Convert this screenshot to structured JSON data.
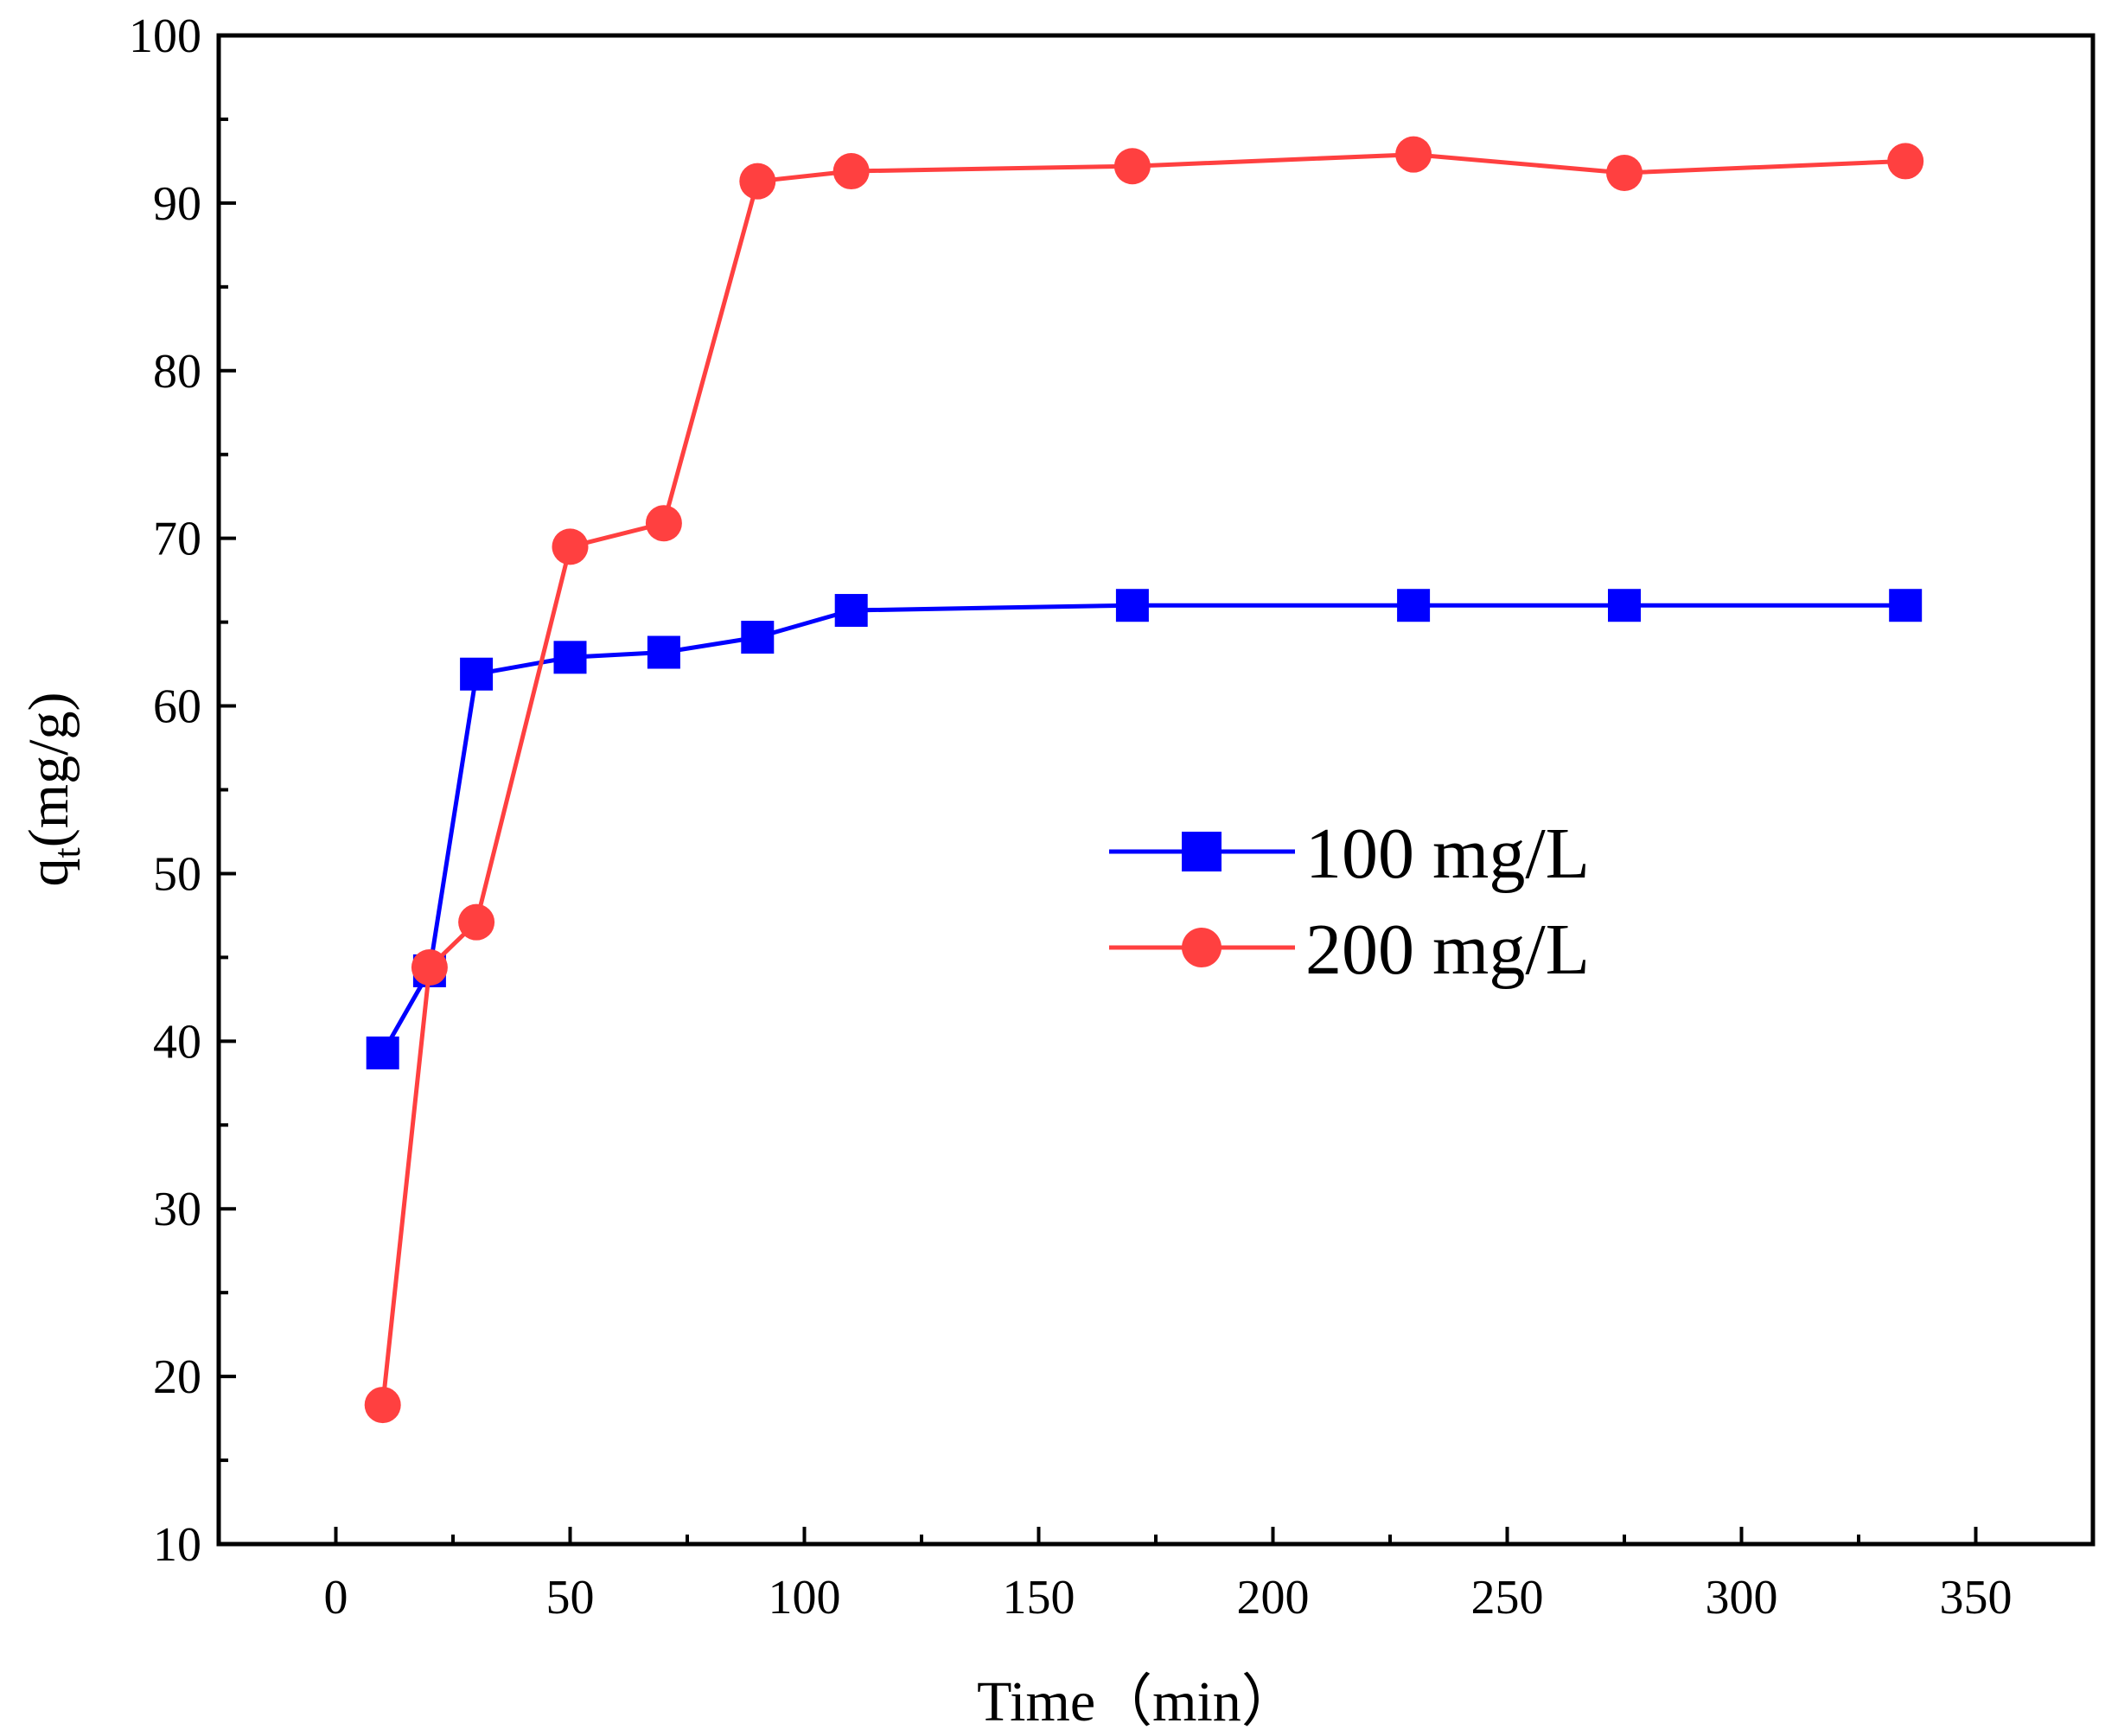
{
  "chart_data": {
    "type": "line",
    "title": "",
    "xlabel": "Time（min）",
    "ylabel_main": "q",
    "ylabel_sub": "t",
    "ylabel_rest": "(mg/g)",
    "xlim": [
      -25,
      375
    ],
    "ylim": [
      10,
      100
    ],
    "xticks": [
      0,
      50,
      100,
      150,
      200,
      250,
      300,
      350
    ],
    "xticks_minor": [
      25,
      75,
      125,
      175,
      225,
      275,
      325
    ],
    "yticks": [
      10,
      20,
      30,
      40,
      50,
      60,
      70,
      80,
      90,
      100
    ],
    "yticks_minor": [
      15,
      25,
      35,
      45,
      55,
      65,
      75,
      85,
      95
    ],
    "grid": false,
    "legend_position": "center-right",
    "series": [
      {
        "name": "100 mg/L",
        "color": "#0000ff",
        "marker": "square",
        "x": [
          10,
          20,
          30,
          50,
          70,
          90,
          110,
          170,
          230,
          275,
          335
        ],
        "y": [
          39.3,
          44.2,
          61.9,
          62.9,
          63.2,
          64.1,
          65.7,
          66.0,
          66.0,
          66.0,
          66.0
        ]
      },
      {
        "name": "200 mg/L",
        "color": "#ff4040",
        "marker": "circle",
        "x": [
          10,
          20,
          30,
          50,
          70,
          90,
          110,
          170,
          230,
          275,
          335
        ],
        "y": [
          18.3,
          44.4,
          47.1,
          69.5,
          70.9,
          91.3,
          91.9,
          92.2,
          92.9,
          91.8,
          92.5
        ]
      }
    ]
  }
}
